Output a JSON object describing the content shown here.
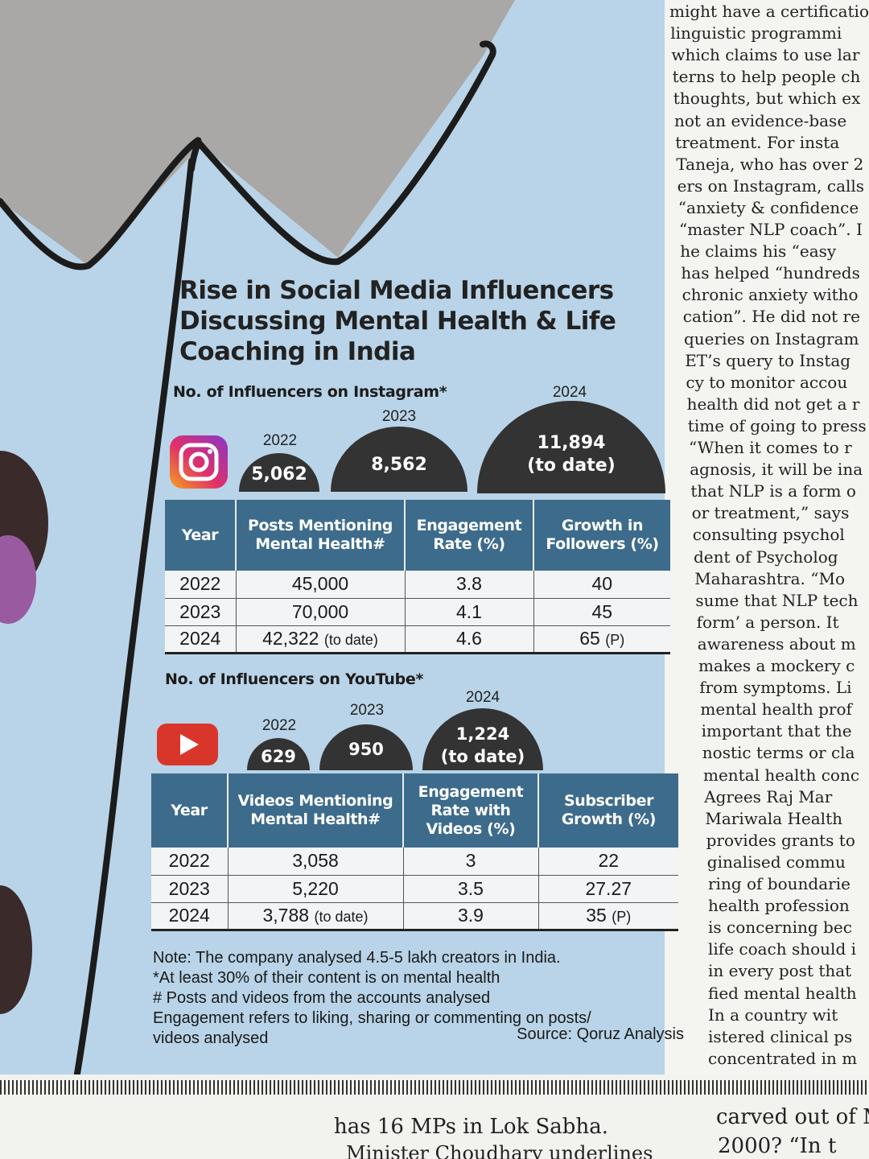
{
  "infographic": {
    "title": "Rise in Social Media Influencers Discussing Mental Health & Life Coaching in India",
    "instagram": {
      "section_label": "No. of Influencers on Instagram*",
      "domes": [
        {
          "year": "2022",
          "value": "5,062",
          "note": ""
        },
        {
          "year": "2023",
          "value": "8,562",
          "note": ""
        },
        {
          "year": "2024",
          "value": "11,894",
          "note": "(to date)"
        }
      ],
      "headers": [
        "Year",
        "Posts Mentioning Mental Health#",
        "Engagement Rate (%)",
        "Growth in Followers (%)"
      ],
      "rows": [
        [
          "2022",
          "45,000",
          "",
          "3.8",
          "40",
          ""
        ],
        [
          "2023",
          "70,000",
          "",
          "4.1",
          "45",
          ""
        ],
        [
          "2024",
          "42,322",
          "(to date)",
          "4.6",
          "65",
          "(P)"
        ]
      ]
    },
    "youtube": {
      "section_label": "No. of Influencers on YouTube*",
      "domes": [
        {
          "year": "2022",
          "value": "629",
          "note": ""
        },
        {
          "year": "2023",
          "value": "950",
          "note": ""
        },
        {
          "year": "2024",
          "value": "1,224",
          "note": "(to date)"
        }
      ],
      "headers": [
        "Year",
        "Videos Mentioning Mental Health#",
        "Engagement Rate with Videos (%)",
        "Subscriber Growth (%)"
      ],
      "rows": [
        [
          "2022",
          "3,058",
          "",
          "3",
          "22",
          ""
        ],
        [
          "2023",
          "5,220",
          "",
          "3.5",
          "27.27",
          ""
        ],
        [
          "2024",
          "3,788",
          "(to date)",
          "3.9",
          "35",
          "(P)"
        ]
      ]
    },
    "notes": [
      "Note: The company analysed 4.5-5 lakh creators in India.",
      "*At least 30% of their content is on mental health",
      "# Posts and videos from the accounts analysed",
      "Engagement refers to liking, sharing or commenting on posts/",
      "videos analysed"
    ],
    "source": "Source: Qoruz Analysis"
  },
  "chart_data": [
    {
      "type": "table",
      "title": "No. of Influencers on Instagram*",
      "categories": [
        "2022",
        "2023",
        "2024"
      ],
      "series": [
        {
          "name": "No. of Influencers on Instagram*",
          "values": [
            5062,
            8562,
            11894
          ]
        },
        {
          "name": "Posts Mentioning Mental Health#",
          "values": [
            45000,
            70000,
            42322
          ]
        },
        {
          "name": "Engagement Rate (%)",
          "values": [
            3.8,
            4.1,
            4.6
          ]
        },
        {
          "name": "Growth in Followers (%)",
          "values": [
            40,
            45,
            65
          ]
        }
      ]
    },
    {
      "type": "table",
      "title": "No. of Influencers on YouTube*",
      "categories": [
        "2022",
        "2023",
        "2024"
      ],
      "series": [
        {
          "name": "No. of Influencers on YouTube*",
          "values": [
            629,
            950,
            1224
          ]
        },
        {
          "name": "Videos Mentioning Mental Health#",
          "values": [
            3058,
            5220,
            3788
          ]
        },
        {
          "name": "Engagement Rate with Videos (%)",
          "values": [
            3,
            3.5,
            3.9
          ]
        },
        {
          "name": "Subscriber Growth (%)",
          "values": [
            22,
            27.27,
            35
          ]
        }
      ]
    }
  ],
  "article_column": [
    "might have a certificatio",
    "linguistic programmi",
    "which claims to use lar",
    "terns to help people ch",
    "thoughts, but which ex",
    "not an evidence-base",
    "treatment. For insta",
    "Taneja, who has over 2",
    "ers on Instagram, calls",
    "“anxiety & confidence",
    "“master NLP coach”. I",
    "he claims his “easy",
    "has helped “hundreds",
    "chronic anxiety witho",
    "cation”. He did not re",
    "queries on Instagram",
    "ET’s query to Instag",
    "cy to monitor accou",
    "health did not get a r",
    "time of going to press",
    "“When it comes to r",
    "agnosis, it will be ina",
    "that NLP is a form o",
    "or treatment,” says",
    "consulting psychol",
    "dent of Psycholog",
    "Maharashtra. “Mo",
    "sume that NLP tech",
    "form’ a person. It",
    "awareness about m",
    "makes a mockery c",
    "from symptoms. Li",
    "mental health prof",
    "important that the",
    "nostic terms or cla",
    "mental health conc",
    "Agrees Raj Mar",
    "Mariwala Health",
    "provides grants to",
    "ginalised commu",
    "ring of boundarie",
    "health profession",
    "is concerning bec",
    "life coach should i",
    "in every post that",
    "fied mental health",
    "In a country wit",
    "istered clinical ps",
    "concentrated in m"
  ],
  "bottom_strip": {
    "left": "has 16 MPs in Lok Sabha.",
    "left2": "Minister Choudhary underlines",
    "right": "carved out of M",
    "right2": "2000? “In t"
  },
  "colors": {
    "header_blue": "#3d6b8c",
    "dome_dark": "#333333",
    "background_sky": "#b9d4e8",
    "youtube_red": "#d9362b"
  },
  "icons": [
    "instagram-icon",
    "youtube-icon"
  ]
}
